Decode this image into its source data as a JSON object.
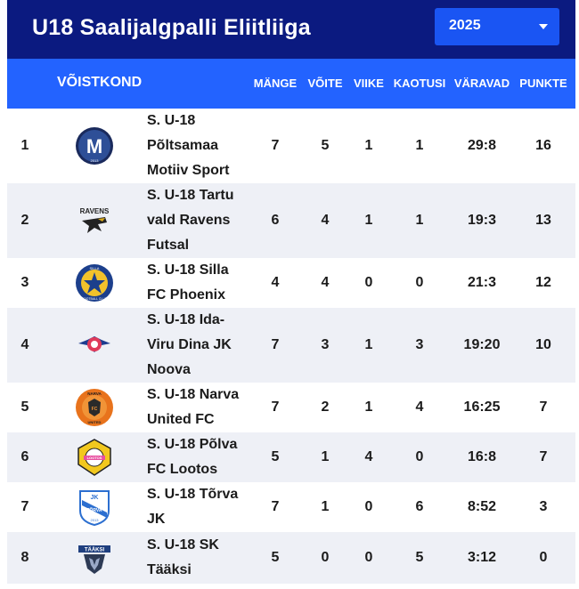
{
  "header": {
    "title": "U18 Saalijalgpalli Eliitliiga",
    "year_selected": "2025"
  },
  "columns": {
    "team": "VÕISTKOND",
    "played": "MÄNGE",
    "won": "VÕITE",
    "draw": "VIIKE",
    "lost": "KAOTUSI",
    "goals": "VÄRAVAD",
    "points": "PUNKTE"
  },
  "rows": [
    {
      "rank": "1",
      "team": "S. U-18 Põltsamaa Motiiv Sport",
      "played": "7",
      "won": "5",
      "draw": "1",
      "lost": "1",
      "goals": "29:8",
      "points": "16",
      "logo": "motiiv-logo"
    },
    {
      "rank": "2",
      "team": "S. U-18 Tartu vald Ravens Futsal",
      "played": "6",
      "won": "4",
      "draw": "1",
      "lost": "1",
      "goals": "19:3",
      "points": "13",
      "logo": "ravens-logo"
    },
    {
      "rank": "3",
      "team": "S. U-18 Silla FC Phoenix",
      "played": "4",
      "won": "4",
      "draw": "0",
      "lost": "0",
      "goals": "21:3",
      "points": "12",
      "logo": "phoenix-logo"
    },
    {
      "rank": "4",
      "team": "S. U-18 Ida-Viru Dina JK Noova",
      "played": "7",
      "won": "3",
      "draw": "1",
      "lost": "3",
      "goals": "19:20",
      "points": "10",
      "logo": "noova-logo"
    },
    {
      "rank": "5",
      "team": "S. U-18 Narva United FC",
      "played": "7",
      "won": "2",
      "draw": "1",
      "lost": "4",
      "goals": "16:25",
      "points": "7",
      "logo": "narva-logo"
    },
    {
      "rank": "6",
      "team": "S. U-18 Põlva FC Lootos",
      "played": "5",
      "won": "1",
      "draw": "4",
      "lost": "0",
      "goals": "16:8",
      "points": "7",
      "logo": "lootos-logo"
    },
    {
      "rank": "7",
      "team": "S. U-18 Tõrva JK",
      "played": "7",
      "won": "1",
      "draw": "0",
      "lost": "6",
      "goals": "8:52",
      "points": "3",
      "logo": "torva-logo"
    },
    {
      "rank": "8",
      "team": "S. U-18 SK Tääksi",
      "played": "5",
      "won": "0",
      "draw": "0",
      "lost": "5",
      "goals": "3:12",
      "points": "0",
      "logo": "taaksi-logo"
    }
  ],
  "logo_text": {
    "motiiv": "M",
    "motiiv_year": "2013",
    "ravens": "RAVENS",
    "phoenix_top": "SILLA",
    "phoenix_bottom": "FOOTBALL CLUB",
    "narva_top": "NARVA",
    "narva_mid": "FC",
    "narva_bottom": "UNITED",
    "lootos": "LOOTOS",
    "torva_top": "JK",
    "torva_mid": "TÕRVA",
    "torva_year": "2013",
    "taaksi": "TÄÄKSI"
  },
  "colors": {
    "header_bg": "#0b1a80",
    "colhead_bg": "#2363ff",
    "select_bg": "#1a55f3",
    "alt_row": "#eef0f6"
  }
}
